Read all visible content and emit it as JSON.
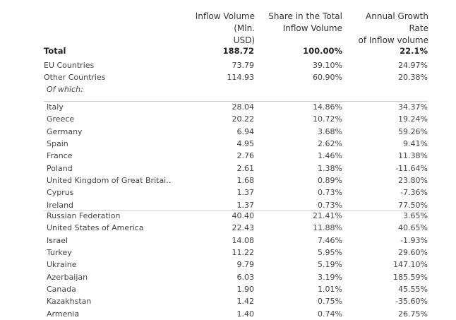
{
  "headers": {
    "col1": [
      "Inflow Volume (Mln.",
      "USD)"
    ],
    "col2": [
      "Share in the Total",
      "Inflow Volume"
    ],
    "col3": [
      "Annual Growth Rate",
      "of Inflow volume"
    ]
  },
  "total": {
    "label": "Total",
    "inflow": "188.72",
    "share": "100.00%",
    "growth": "22.1%"
  },
  "groups": [
    {
      "label": "EU Countries",
      "inflow": "73.79",
      "share": "39.10%",
      "growth": "24.97%"
    },
    {
      "label": "Other Countries",
      "inflow": "114.93",
      "share": "60.90%",
      "growth": "20.38%"
    }
  ],
  "of_which_label": "Of which:",
  "eu_countries": [
    {
      "label": "Italy",
      "inflow": "28.04",
      "share": "14.86%",
      "growth": "34.37%"
    },
    {
      "label": "Greece",
      "inflow": "20.22",
      "share": "10.72%",
      "growth": "19.24%"
    },
    {
      "label": "Germany",
      "inflow": "6.94",
      "share": "3.68%",
      "growth": "59.26%"
    },
    {
      "label": "Spain",
      "inflow": "4.95",
      "share": "2.62%",
      "growth": "9.41%"
    },
    {
      "label": "France",
      "inflow": "2.76",
      "share": "1.46%",
      "growth": "11.38%"
    },
    {
      "label": "Poland",
      "inflow": "2.61",
      "share": "1.38%",
      "growth": "-11.64%"
    },
    {
      "label": "United Kingdom of Great Britai..",
      "inflow": "1.68",
      "share": "0.89%",
      "growth": "23.80%"
    },
    {
      "label": "Cyprus",
      "inflow": "1.37",
      "share": "0.73%",
      "growth": "-7.36%"
    },
    {
      "label": "Ireland",
      "inflow": "1.37",
      "share": "0.73%",
      "growth": "77.50%"
    }
  ],
  "other_countries": [
    {
      "label": "Russian Federation",
      "inflow": "40.40",
      "share": "21.41%",
      "growth": "3.65%"
    },
    {
      "label": "United States of America",
      "inflow": "22.43",
      "share": "11.88%",
      "growth": "40.65%"
    },
    {
      "label": "Israel",
      "inflow": "14.08",
      "share": "7.46%",
      "growth": "-1.93%"
    },
    {
      "label": "Turkey",
      "inflow": "11.22",
      "share": "5.95%",
      "growth": "29.60%"
    },
    {
      "label": "Ukraine",
      "inflow": "9.79",
      "share": "5.19%",
      "growth": "147.10%"
    },
    {
      "label": "Azerbaijan",
      "inflow": "6.03",
      "share": "3.19%",
      "growth": "185.59%"
    },
    {
      "label": "Canada",
      "inflow": "1.90",
      "share": "1.01%",
      "growth": "45.55%"
    },
    {
      "label": "Kazakhstan",
      "inflow": "1.42",
      "share": "0.75%",
      "growth": "-35.60%"
    },
    {
      "label": "Armenia",
      "inflow": "1.40",
      "share": "0.74%",
      "growth": "26.75%"
    }
  ],
  "chart_data": {
    "type": "table",
    "columns": [
      "Inflow Volume (Mln. USD)",
      "Share in the Total Inflow Volume",
      "Annual Growth Rate of Inflow volume"
    ],
    "rows": [
      {
        "name": "Total",
        "inflow": 188.72,
        "share": 100.0,
        "growth": 22.1
      },
      {
        "name": "EU Countries",
        "inflow": 73.79,
        "share": 39.1,
        "growth": 24.97
      },
      {
        "name": "Other Countries",
        "inflow": 114.93,
        "share": 60.9,
        "growth": 20.38
      },
      {
        "name": "Italy",
        "inflow": 28.04,
        "share": 14.86,
        "growth": 34.37
      },
      {
        "name": "Greece",
        "inflow": 20.22,
        "share": 10.72,
        "growth": 19.24
      },
      {
        "name": "Germany",
        "inflow": 6.94,
        "share": 3.68,
        "growth": 59.26
      },
      {
        "name": "Spain",
        "inflow": 4.95,
        "share": 2.62,
        "growth": 9.41
      },
      {
        "name": "France",
        "inflow": 2.76,
        "share": 1.46,
        "growth": 11.38
      },
      {
        "name": "Poland",
        "inflow": 2.61,
        "share": 1.38,
        "growth": -11.64
      },
      {
        "name": "United Kingdom of Great Britai..",
        "inflow": 1.68,
        "share": 0.89,
        "growth": 23.8
      },
      {
        "name": "Cyprus",
        "inflow": 1.37,
        "share": 0.73,
        "growth": -7.36
      },
      {
        "name": "Ireland",
        "inflow": 1.37,
        "share": 0.73,
        "growth": 77.5
      },
      {
        "name": "Russian Federation",
        "inflow": 40.4,
        "share": 21.41,
        "growth": 3.65
      },
      {
        "name": "United States of America",
        "inflow": 22.43,
        "share": 11.88,
        "growth": 40.65
      },
      {
        "name": "Israel",
        "inflow": 14.08,
        "share": 7.46,
        "growth": -1.93
      },
      {
        "name": "Turkey",
        "inflow": 11.22,
        "share": 5.95,
        "growth": 29.6
      },
      {
        "name": "Ukraine",
        "inflow": 9.79,
        "share": 5.19,
        "growth": 147.1
      },
      {
        "name": "Azerbaijan",
        "inflow": 6.03,
        "share": 3.19,
        "growth": 185.59
      },
      {
        "name": "Canada",
        "inflow": 1.9,
        "share": 1.01,
        "growth": 45.55
      },
      {
        "name": "Kazakhstan",
        "inflow": 1.42,
        "share": 0.75,
        "growth": -35.6
      },
      {
        "name": "Armenia",
        "inflow": 1.4,
        "share": 0.74,
        "growth": 26.75
      }
    ]
  }
}
